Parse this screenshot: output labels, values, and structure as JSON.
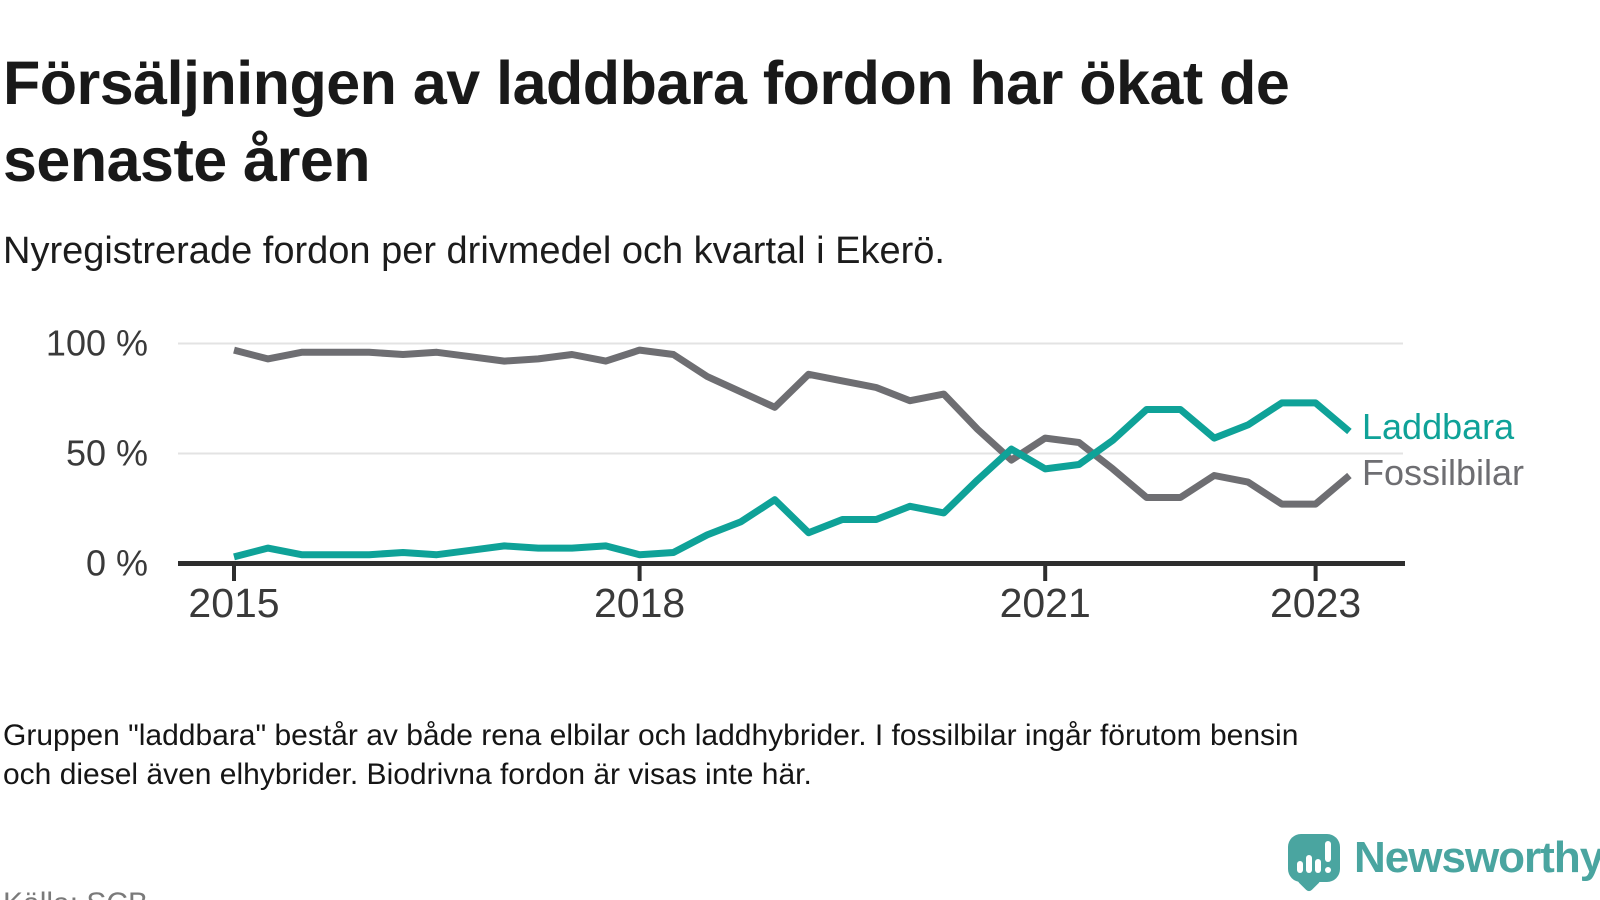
{
  "header": {
    "title_lines": [
      "Försäljningen av laddbara fordon har ökat de",
      "senaste åren"
    ],
    "subtitle": "Nyregistrerade fordon per drivmedel och kvartal i Ekerö."
  },
  "chart_data": {
    "type": "line",
    "x": [
      "2015 Q1",
      "2015 Q2",
      "2015 Q3",
      "2015 Q4",
      "2016 Q1",
      "2016 Q2",
      "2016 Q3",
      "2016 Q4",
      "2017 Q1",
      "2017 Q2",
      "2017 Q3",
      "2017 Q4",
      "2018 Q1",
      "2018 Q2",
      "2018 Q3",
      "2018 Q4",
      "2019 Q1",
      "2019 Q2",
      "2019 Q3",
      "2019 Q4",
      "2020 Q1",
      "2020 Q2",
      "2020 Q3",
      "2020 Q4",
      "2021 Q1",
      "2021 Q2",
      "2021 Q3",
      "2021 Q4",
      "2022 Q1",
      "2022 Q2",
      "2022 Q3",
      "2022 Q4",
      "2023 Q1",
      "2023 Q2"
    ],
    "series": [
      {
        "name": "Laddbara",
        "color": "#0fa298",
        "values": [
          3,
          7,
          4,
          4,
          4,
          5,
          4,
          6,
          8,
          7,
          7,
          8,
          4,
          5,
          13,
          19,
          29,
          14,
          20,
          20,
          26,
          23,
          38,
          52,
          43,
          45,
          56,
          70,
          70,
          57,
          63,
          73,
          73,
          60
        ]
      },
      {
        "name": "Fossilbilar",
        "color": "#6e6e72",
        "values": [
          97,
          93,
          96,
          96,
          96,
          95,
          96,
          94,
          92,
          93,
          95,
          92,
          97,
          95,
          85,
          78,
          71,
          86,
          83,
          80,
          74,
          77,
          61,
          47,
          57,
          55,
          43,
          30,
          30,
          40,
          37,
          27,
          27,
          40
        ]
      }
    ],
    "ylabel": "",
    "xlabel": "",
    "ylim": [
      0,
      100
    ],
    "yticks": [
      {
        "value": 100,
        "label": "100 %"
      },
      {
        "value": 50,
        "label": "50 %"
      },
      {
        "value": 0,
        "label": "0 %"
      }
    ],
    "xticks": [
      {
        "index": 0,
        "label": "2015"
      },
      {
        "index": 12,
        "label": "2018"
      },
      {
        "index": 24,
        "label": "2021"
      },
      {
        "index": 32,
        "label": "2023"
      }
    ],
    "grid": "horizontal",
    "legend_position": "right-of-line-end",
    "unit": "%"
  },
  "footnote_lines": [
    "Gruppen \"laddbara\" består av både rena elbilar och laddhybrider. I fossilbilar ingår förutom bensin",
    "och diesel även elhybrider. Biodrivna fordon är visas inte här."
  ],
  "source": "Källa: SCB",
  "logo": {
    "text": "Newsworthy",
    "brand_color": "#4aa5a0"
  }
}
